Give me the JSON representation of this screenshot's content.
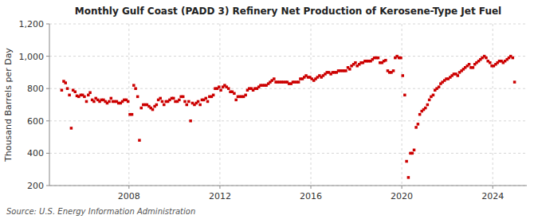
{
  "chart_data": {
    "type": "scatter",
    "title": "Monthly Gulf Coast (PADD 3) Refinery Net Production of Kerosene-Type Jet Fuel",
    "ylabel": "Thousand Barrels per Day",
    "source": "Source: U.S. Energy Information Administration",
    "color": "#cc0000",
    "marker": "square",
    "grid": true,
    "xlim": [
      2004.5,
      2025.5
    ],
    "xticks": [
      2008,
      2012,
      2016,
      2020,
      2024
    ],
    "ylim": [
      200,
      1200
    ],
    "yticks": [
      200,
      400,
      600,
      800,
      {
        "value": 1000,
        "label": "1,000"
      },
      {
        "value": 1200,
        "label": "1,200"
      }
    ],
    "x": [
      2005.04,
      2005.13,
      2005.21,
      2005.29,
      2005.38,
      2005.46,
      2005.54,
      2005.63,
      2005.71,
      2005.79,
      2005.88,
      2005.96,
      2006.04,
      2006.13,
      2006.21,
      2006.29,
      2006.38,
      2006.46,
      2006.54,
      2006.63,
      2006.71,
      2006.79,
      2006.88,
      2006.96,
      2007.04,
      2007.13,
      2007.21,
      2007.29,
      2007.38,
      2007.46,
      2007.54,
      2007.63,
      2007.71,
      2007.79,
      2007.88,
      2007.96,
      2008.04,
      2008.13,
      2008.21,
      2008.29,
      2008.38,
      2008.46,
      2008.54,
      2008.63,
      2008.71,
      2008.79,
      2008.88,
      2008.96,
      2009.04,
      2009.13,
      2009.21,
      2009.29,
      2009.38,
      2009.46,
      2009.54,
      2009.63,
      2009.71,
      2009.79,
      2009.88,
      2009.96,
      2010.04,
      2010.13,
      2010.21,
      2010.29,
      2010.38,
      2010.46,
      2010.54,
      2010.63,
      2010.71,
      2010.79,
      2010.88,
      2010.96,
      2011.04,
      2011.13,
      2011.21,
      2011.29,
      2011.38,
      2011.46,
      2011.54,
      2011.63,
      2011.71,
      2011.79,
      2011.88,
      2011.96,
      2012.04,
      2012.13,
      2012.21,
      2012.29,
      2012.38,
      2012.46,
      2012.54,
      2012.63,
      2012.71,
      2012.79,
      2012.88,
      2012.96,
      2013.04,
      2013.13,
      2013.21,
      2013.29,
      2013.38,
      2013.46,
      2013.54,
      2013.63,
      2013.71,
      2013.79,
      2013.88,
      2013.96,
      2014.04,
      2014.13,
      2014.21,
      2014.29,
      2014.38,
      2014.46,
      2014.54,
      2014.63,
      2014.71,
      2014.79,
      2014.88,
      2014.96,
      2015.04,
      2015.13,
      2015.21,
      2015.29,
      2015.38,
      2015.46,
      2015.54,
      2015.63,
      2015.71,
      2015.79,
      2015.88,
      2015.96,
      2016.04,
      2016.13,
      2016.21,
      2016.29,
      2016.38,
      2016.46,
      2016.54,
      2016.63,
      2016.71,
      2016.79,
      2016.88,
      2016.96,
      2017.04,
      2017.13,
      2017.21,
      2017.29,
      2017.38,
      2017.46,
      2017.54,
      2017.63,
      2017.71,
      2017.79,
      2017.88,
      2017.96,
      2018.04,
      2018.13,
      2018.21,
      2018.29,
      2018.38,
      2018.46,
      2018.54,
      2018.63,
      2018.71,
      2018.79,
      2018.88,
      2018.96,
      2019.04,
      2019.13,
      2019.21,
      2019.29,
      2019.38,
      2019.46,
      2019.54,
      2019.63,
      2019.71,
      2019.79,
      2019.88,
      2019.96,
      2020.04,
      2020.13,
      2020.21,
      2020.29,
      2020.38,
      2020.46,
      2020.54,
      2020.63,
      2020.71,
      2020.79,
      2020.88,
      2020.96,
      2021.04,
      2021.13,
      2021.21,
      2021.29,
      2021.38,
      2021.46,
      2021.54,
      2021.63,
      2021.71,
      2021.79,
      2021.88,
      2021.96,
      2022.04,
      2022.13,
      2022.21,
      2022.29,
      2022.38,
      2022.46,
      2022.54,
      2022.63,
      2022.71,
      2022.79,
      2022.88,
      2022.96,
      2023.04,
      2023.13,
      2023.21,
      2023.29,
      2023.38,
      2023.46,
      2023.54,
      2023.63,
      2023.71,
      2023.79,
      2023.88,
      2023.96,
      2024.04,
      2024.13,
      2024.21,
      2024.29,
      2024.38,
      2024.46,
      2024.54,
      2024.63,
      2024.71,
      2024.79,
      2024.88,
      2024.96
    ],
    "values": [
      790,
      845,
      835,
      800,
      760,
      555,
      790,
      780,
      755,
      750,
      760,
      760,
      750,
      720,
      760,
      775,
      730,
      720,
      740,
      730,
      720,
      730,
      730,
      720,
      710,
      720,
      740,
      720,
      720,
      720,
      710,
      710,
      720,
      730,
      730,
      720,
      640,
      640,
      820,
      800,
      750,
      480,
      680,
      700,
      700,
      700,
      690,
      680,
      670,
      690,
      700,
      730,
      740,
      720,
      700,
      720,
      720,
      730,
      740,
      740,
      720,
      720,
      730,
      750,
      750,
      720,
      700,
      720,
      600,
      710,
      700,
      710,
      720,
      700,
      730,
      730,
      740,
      720,
      750,
      750,
      760,
      800,
      800,
      810,
      790,
      810,
      820,
      810,
      800,
      780,
      780,
      770,
      730,
      750,
      750,
      750,
      750,
      760,
      790,
      800,
      800,
      790,
      800,
      800,
      810,
      820,
      820,
      820,
      820,
      830,
      840,
      850,
      860,
      840,
      840,
      840,
      840,
      840,
      840,
      840,
      830,
      830,
      840,
      840,
      840,
      840,
      860,
      860,
      870,
      880,
      870,
      870,
      860,
      850,
      860,
      870,
      880,
      870,
      880,
      890,
      900,
      900,
      890,
      900,
      900,
      900,
      910,
      910,
      910,
      910,
      910,
      930,
      920,
      940,
      950,
      960,
      940,
      950,
      960,
      960,
      970,
      970,
      970,
      970,
      980,
      990,
      990,
      990,
      960,
      960,
      970,
      975,
      910,
      900,
      900,
      910,
      990,
      1000,
      990,
      990,
      880,
      760,
      350,
      250,
      400,
      400,
      420,
      560,
      580,
      640,
      660,
      670,
      680,
      700,
      730,
      750,
      760,
      790,
      800,
      810,
      830,
      840,
      850,
      860,
      860,
      870,
      880,
      890,
      890,
      880,
      900,
      910,
      920,
      930,
      940,
      950,
      930,
      930,
      950,
      960,
      970,
      980,
      990,
      1000,
      990,
      970,
      960,
      940,
      940,
      950,
      960,
      970,
      970,
      960,
      970,
      980,
      990,
      1000,
      990,
      840
    ]
  }
}
